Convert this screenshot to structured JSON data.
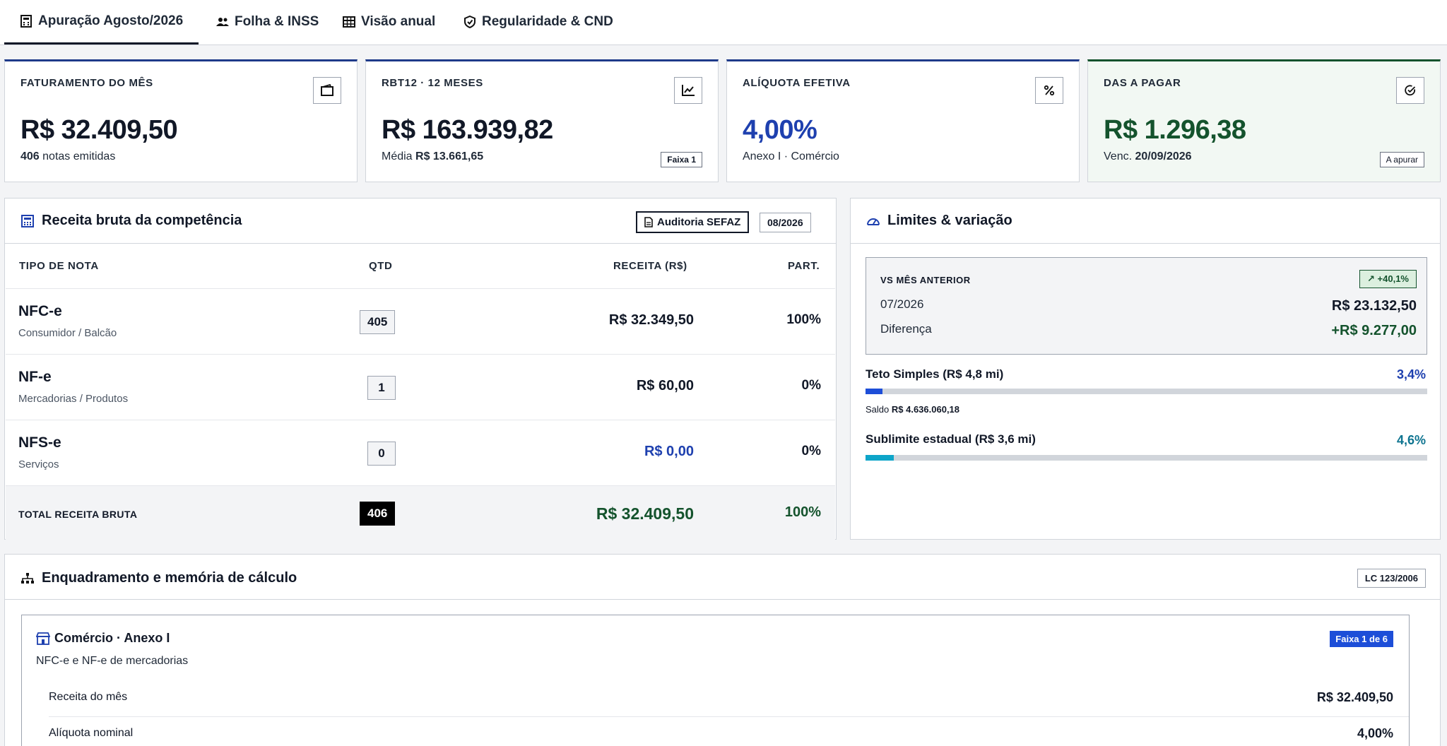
{
  "tabs": [
    {
      "label": "Apuração Agosto/2026",
      "icon": "calculator-icon",
      "active": true
    },
    {
      "label": "Folha & INSS",
      "icon": "users-icon"
    },
    {
      "label": "Visão anual",
      "icon": "table-icon"
    },
    {
      "label": "Regularidade & CND",
      "icon": "shield-check-icon"
    }
  ],
  "kpis": {
    "faturamento": {
      "label": "FATURAMENTO DO MÊS",
      "value": "R$ 32.409,50",
      "sub_strong": "406",
      "sub": " notas emitidas",
      "icon": "wallet-icon"
    },
    "rbt12": {
      "label": "RBT12 · 12 MESES",
      "value": "R$ 163.939,82",
      "sub": "Média ",
      "sub_strong": "R$ 13.661,65",
      "chip": "Faixa 1",
      "icon": "chart-line-icon"
    },
    "aliquota": {
      "label": "ALÍQUOTA EFETIVA",
      "value": "4,00%",
      "sub": "Anexo I · Comércio",
      "icon": "percent-icon"
    },
    "das": {
      "label": "DAS A PAGAR",
      "value": "R$ 1.296,38",
      "sub": "Venc. ",
      "sub_strong": "20/09/2026",
      "chip": "A apurar",
      "icon": "check-circle-icon"
    }
  },
  "receita": {
    "title": "Receita bruta da competência",
    "audit_label": "Auditoria SEFAZ",
    "period": "08/2026",
    "columns": {
      "tipo": "TIPO DE NOTA",
      "qtd": "QTD",
      "receita": "RECEITA (R$)",
      "part": "PART."
    },
    "rows": [
      {
        "name": "NFC-e",
        "desc": "Consumidor / Balcão",
        "qtd": "405",
        "receita": "R$ 32.349,50",
        "part": "100%"
      },
      {
        "name": "NF-e",
        "desc": "Mercadorias / Produtos",
        "qtd": "1",
        "receita": "R$ 60,00",
        "part": "0%"
      },
      {
        "name": "NFS-e",
        "desc": "Serviços",
        "qtd": "0",
        "receita": "R$ 0,00",
        "part": "0%"
      }
    ],
    "total": {
      "label": "TOTAL RECEITA BRUTA",
      "qtd": "406",
      "receita": "R$ 32.409,50",
      "part": "100%"
    }
  },
  "limites": {
    "title": "Limites & variação",
    "vs_label": "VS MÊS ANTERIOR",
    "vs_badge": "↗ +40,1%",
    "prev_period": "07/2026",
    "prev_value": "R$ 23.132,50",
    "diff_label": "Diferença",
    "diff_value": "+R$ 9.277,00",
    "teto": {
      "label": "Teto Simples (R$ 4,8 mi)",
      "pct": "3,4%",
      "fraction": 0.034,
      "saldo_label": "Saldo ",
      "saldo_value": "R$ 4.636.060,18",
      "color": "#1d4ed8"
    },
    "sublimite": {
      "label": "Sublimite estadual (R$ 3,6 mi)",
      "pct": "4,6%",
      "fraction": 0.046,
      "color": "#0ea5c9"
    }
  },
  "enquadramento": {
    "title": "Enquadramento e memória de cálculo",
    "badge": "LC 123/2006",
    "card": {
      "title": "Comércio · Anexo I",
      "subtitle": "NFC-e e NF-e de mercadorias",
      "faixa": "Faixa 1 de 6",
      "lines": [
        {
          "label": "Receita do mês",
          "value": "R$ 32.409,50"
        },
        {
          "label": "Alíquota nominal",
          "value": "4,00%"
        }
      ]
    }
  }
}
